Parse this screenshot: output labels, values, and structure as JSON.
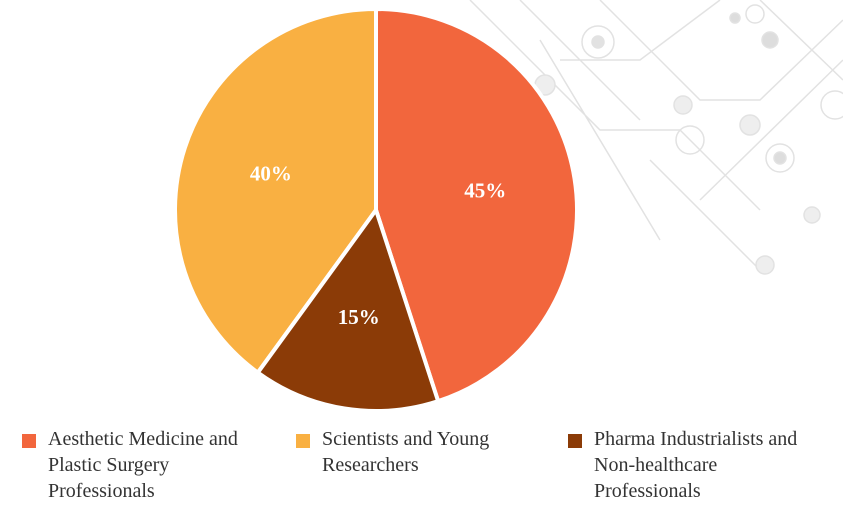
{
  "chart_data": {
    "type": "pie",
    "categories": [
      "Aesthetic Medicine and Plastic Surgery Professionals",
      "Scientists and Young Researchers",
      "Pharma Industrialists and Non-healthcare Professionals"
    ],
    "values": [
      45,
      40,
      15
    ],
    "value_labels": [
      "45%",
      "40%",
      "15%"
    ],
    "colors": [
      "#f2663d",
      "#f9b042",
      "#8b3b07"
    ]
  }
}
